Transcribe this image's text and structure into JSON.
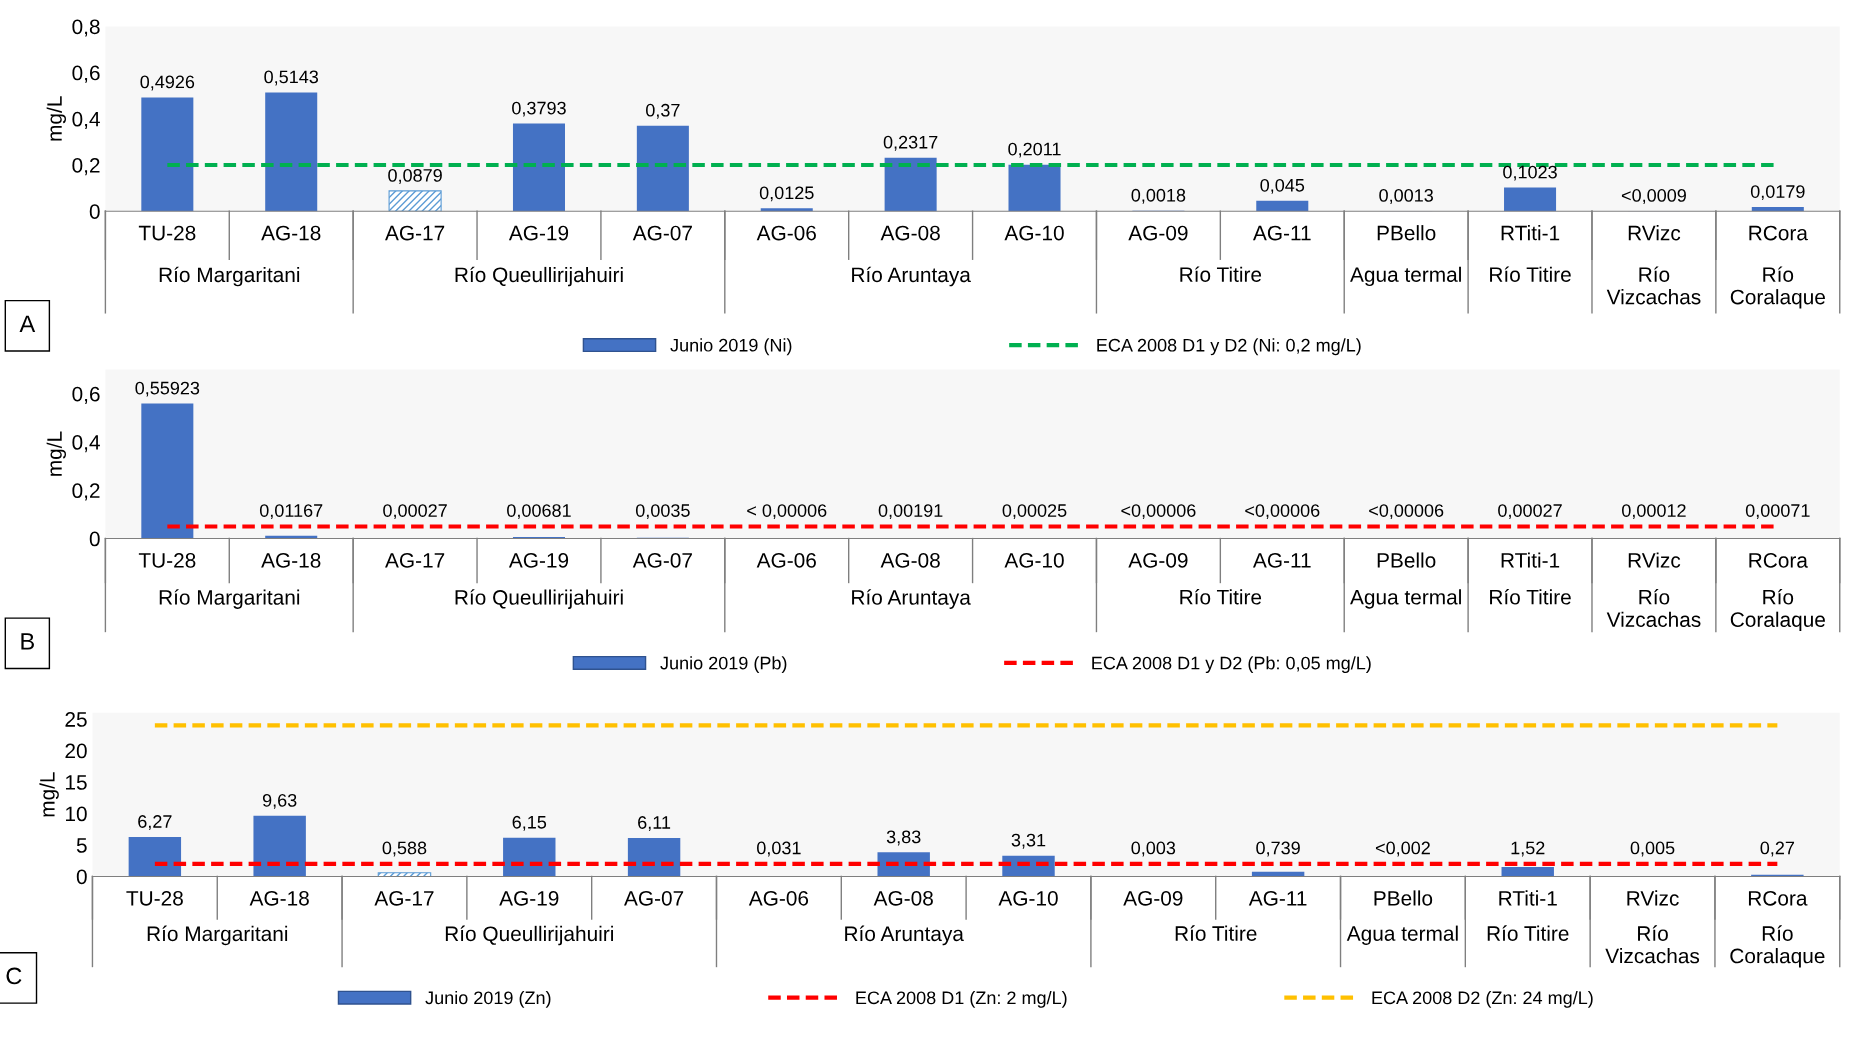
{
  "chart_data": [
    {
      "type": "bar",
      "ylabel": "mg/L",
      "legend": "bottom",
      "ylim": [
        0,
        0.8
      ],
      "yticks": [
        0,
        {
          "value": 0.2,
          "label": "0,2"
        },
        {
          "value": 0.4,
          "label": "0,4"
        },
        {
          "value": 0.6,
          "label": "0,6"
        },
        {
          "value": 0.8,
          "label": "0,8"
        }
      ],
      "categories": [
        "TU-28",
        "AG-18",
        "AG-17",
        "AG-19",
        "AG-07",
        "AG-06",
        "AG-08",
        "AG-10",
        "AG-09",
        "AG-11",
        "PBello",
        "RTiti-1",
        "RVizc",
        "RCora"
      ],
      "series": [
        {
          "name": "Junio 2019 (Ni)",
          "color": "#4472c4",
          "colors": [
            "#4472c4",
            "#4472c4",
            "#5b9bd5",
            "#4472c4",
            "#4472c4",
            "#4472c4",
            "#4472c4",
            "#4472c4",
            "#4472c4",
            "#4472c4",
            "#4472c4",
            "#4472c4",
            "#4472c4",
            "#4472c4"
          ],
          "values": [
            0.4926,
            0.5143,
            0.0879,
            0.3793,
            0.37,
            0.0125,
            0.2317,
            0.2011,
            0.0018,
            0.045,
            0.0013,
            0.1023,
            0.0009,
            0.0179
          ],
          "value_labels": [
            "0,4926",
            "0,5143",
            "0,0879",
            "0,3793",
            "0,37",
            "0,0125",
            "0,2317",
            "0,2011",
            "0,0018",
            "0,045",
            "0,0013",
            "0,1023",
            "<0,0009",
            "0,0179"
          ]
        }
      ],
      "ref_lines": [
        {
          "axis": "y",
          "value": 0.2,
          "label": "ECA 2008 D1 y D2 (Ni: 0,2 mg/L)",
          "color": "#00b050",
          "line_style": "dashed"
        }
      ],
      "annotations": [
        "Río Margaritani",
        "Río Queullirijahuiri",
        "Río Aruntaya",
        "Río Titire",
        "Agua termal",
        "Río Titire",
        "Río\nVizcachas",
        "Río\nCoralaque",
        "A"
      ]
    },
    {
      "type": "bar",
      "ylabel": "mg/L",
      "legend": "bottom",
      "ylim": [
        0,
        0.7
      ],
      "yticks": [
        0,
        {
          "value": 0.2,
          "label": "0,2"
        },
        {
          "value": 0.4,
          "label": "0,4"
        },
        {
          "value": 0.6,
          "label": "0,6"
        }
      ],
      "categories": [
        "TU-28",
        "AG-18",
        "AG-17",
        "AG-19",
        "AG-07",
        "AG-06",
        "AG-08",
        "AG-10",
        "AG-09",
        "AG-11",
        "PBello",
        "RTiti-1",
        "RVizc",
        "RCora"
      ],
      "series": [
        {
          "name": "Junio 2019 (Pb)",
          "color": "#4472c4",
          "values": [
            0.55923,
            0.01167,
            0.00027,
            0.00681,
            0.0035,
            6e-05,
            0.00191,
            0.00025,
            6e-05,
            6e-05,
            6e-05,
            0.00027,
            0.00012,
            0.00071
          ],
          "value_labels": [
            "0,55923",
            "0,01167",
            "0,00027",
            "0,00681",
            "0,0035",
            "< 0,00006",
            "0,00191",
            "0,00025",
            "<0,00006",
            "<0,00006",
            "<0,00006",
            "0,00027",
            "0,00012",
            "0,00071"
          ]
        }
      ],
      "ref_lines": [
        {
          "axis": "y",
          "value": 0.05,
          "label": "ECA 2008 D1 y D2 (Pb: 0,05 mg/L)",
          "color": "#ff0000",
          "line_style": "dashed"
        }
      ],
      "annotations": [
        "Río Margaritani",
        "Río Queullirijahuiri",
        "Río Aruntaya",
        "Río Titire",
        "Agua termal",
        "Río Titire",
        "Río\nVizcachas",
        "Río\nCoralaque",
        "B"
      ]
    },
    {
      "type": "bar",
      "ylabel": "mg/L",
      "legend": "bottom",
      "ylim": [
        0,
        26
      ],
      "yticks": [
        0,
        5,
        10,
        15,
        20,
        25
      ],
      "categories": [
        "TU-28",
        "AG-18",
        "AG-17",
        "AG-19",
        "AG-07",
        "AG-06",
        "AG-08",
        "AG-10",
        "AG-09",
        "AG-11",
        "PBello",
        "RTiti-1",
        "RVizc",
        "RCora"
      ],
      "series": [
        {
          "name": "Junio 2019 (Zn)",
          "color": "#4472c4",
          "colors": [
            "#4472c4",
            "#4472c4",
            "#5b9bd5",
            "#4472c4",
            "#4472c4",
            "#4472c4",
            "#4472c4",
            "#4472c4",
            "#4472c4",
            "#4472c4",
            "#4472c4",
            "#4472c4",
            "#4472c4",
            "#4472c4"
          ],
          "values": [
            6.27,
            9.63,
            0.588,
            6.15,
            6.11,
            0.031,
            3.83,
            3.31,
            0.003,
            0.739,
            0.002,
            1.52,
            0.005,
            0.27
          ],
          "value_labels": [
            "6,27",
            "9,63",
            "0,588",
            "6,15",
            "6,11",
            "0,031",
            "3,83",
            "3,31",
            "0,003",
            "0,739",
            "<0,002",
            "1,52",
            "0,005",
            "0,27"
          ]
        }
      ],
      "ref_lines": [
        {
          "axis": "y",
          "value": 2,
          "label": "ECA 2008 D1 (Zn: 2 mg/L)",
          "color": "#ff0000",
          "line_style": "dashed"
        },
        {
          "axis": "y",
          "value": 24,
          "label": "ECA 2008 D2 (Zn: 24 mg/L)",
          "color": "#ffc000",
          "line_style": "dashed"
        }
      ],
      "annotations": [
        "Río Margaritani",
        "Río Queullirijahuiri",
        "Río Aruntaya",
        "Río Titire",
        "Agua termal",
        "Río Titire",
        "Río\nVizcachas",
        "Río\nCoralaque",
        "C"
      ]
    }
  ]
}
